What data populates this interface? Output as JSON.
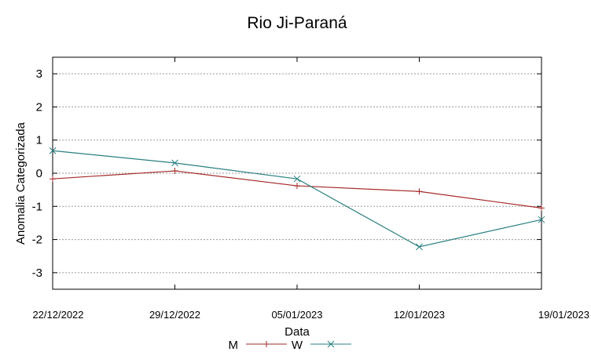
{
  "chart_data": {
    "type": "line",
    "title": "Rio Ji-Paraná",
    "xlabel": "Data",
    "ylabel": "Anomalia Categorizada",
    "categories": [
      "22/12/2022",
      "29/12/2022",
      "05/01/2023",
      "12/01/2023",
      "19/01/2023"
    ],
    "ylim": [
      -3.5,
      3.5
    ],
    "yticks": [
      3,
      2,
      1,
      0,
      -1,
      -2,
      -3
    ],
    "ytick_labels": [
      "3",
      "2",
      "1",
      "0",
      "-1",
      "-2",
      "-3"
    ],
    "grid": true,
    "legend": "bottom-center",
    "series": [
      {
        "name": "M",
        "color": "#a52a2a",
        "marker": "plus",
        "values": [
          -0.17,
          0.07,
          -0.38,
          -0.55,
          -1.05
        ]
      },
      {
        "name": "W",
        "color": "#2a7f80",
        "marker": "cross",
        "values": [
          0.68,
          0.31,
          -0.17,
          -2.22,
          -1.4
        ]
      }
    ]
  }
}
